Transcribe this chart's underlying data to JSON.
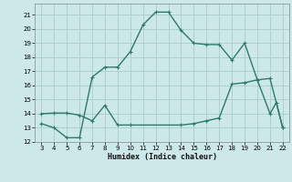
{
  "xlabel": "Humidex (Indice chaleur)",
  "background_color": "#cce8e8",
  "grid_color": "#aacccc",
  "line_color": "#2d7a6a",
  "xlim": [
    2.5,
    22.5
  ],
  "ylim": [
    12,
    21.8
  ],
  "xticks": [
    3,
    4,
    5,
    6,
    7,
    8,
    9,
    10,
    11,
    12,
    13,
    14,
    15,
    16,
    17,
    18,
    19,
    20,
    21,
    22
  ],
  "yticks": [
    12,
    13,
    14,
    15,
    16,
    17,
    18,
    19,
    20,
    21
  ],
  "line1_x": [
    3,
    4,
    5,
    6,
    7,
    8,
    9,
    10,
    11,
    12,
    13,
    14,
    15,
    16,
    17,
    18,
    19,
    20,
    21,
    21.5,
    22
  ],
  "line1_y": [
    13.3,
    13.0,
    12.3,
    12.3,
    16.6,
    17.3,
    17.3,
    18.4,
    20.3,
    21.2,
    21.2,
    19.9,
    19.0,
    18.9,
    18.9,
    17.8,
    19.0,
    16.4,
    14.0,
    14.8,
    13.0
  ],
  "line2_x": [
    3,
    4,
    5,
    6,
    7,
    8,
    9,
    10,
    14,
    15,
    16,
    17,
    18,
    19,
    20,
    21,
    22
  ],
  "line2_y": [
    14.0,
    14.05,
    14.05,
    13.9,
    13.5,
    14.6,
    13.2,
    13.2,
    13.2,
    13.3,
    13.5,
    13.7,
    16.1,
    16.2,
    16.4,
    16.5,
    13.0
  ],
  "marker": "+",
  "markersize": 3.5,
  "linewidth": 1.0
}
